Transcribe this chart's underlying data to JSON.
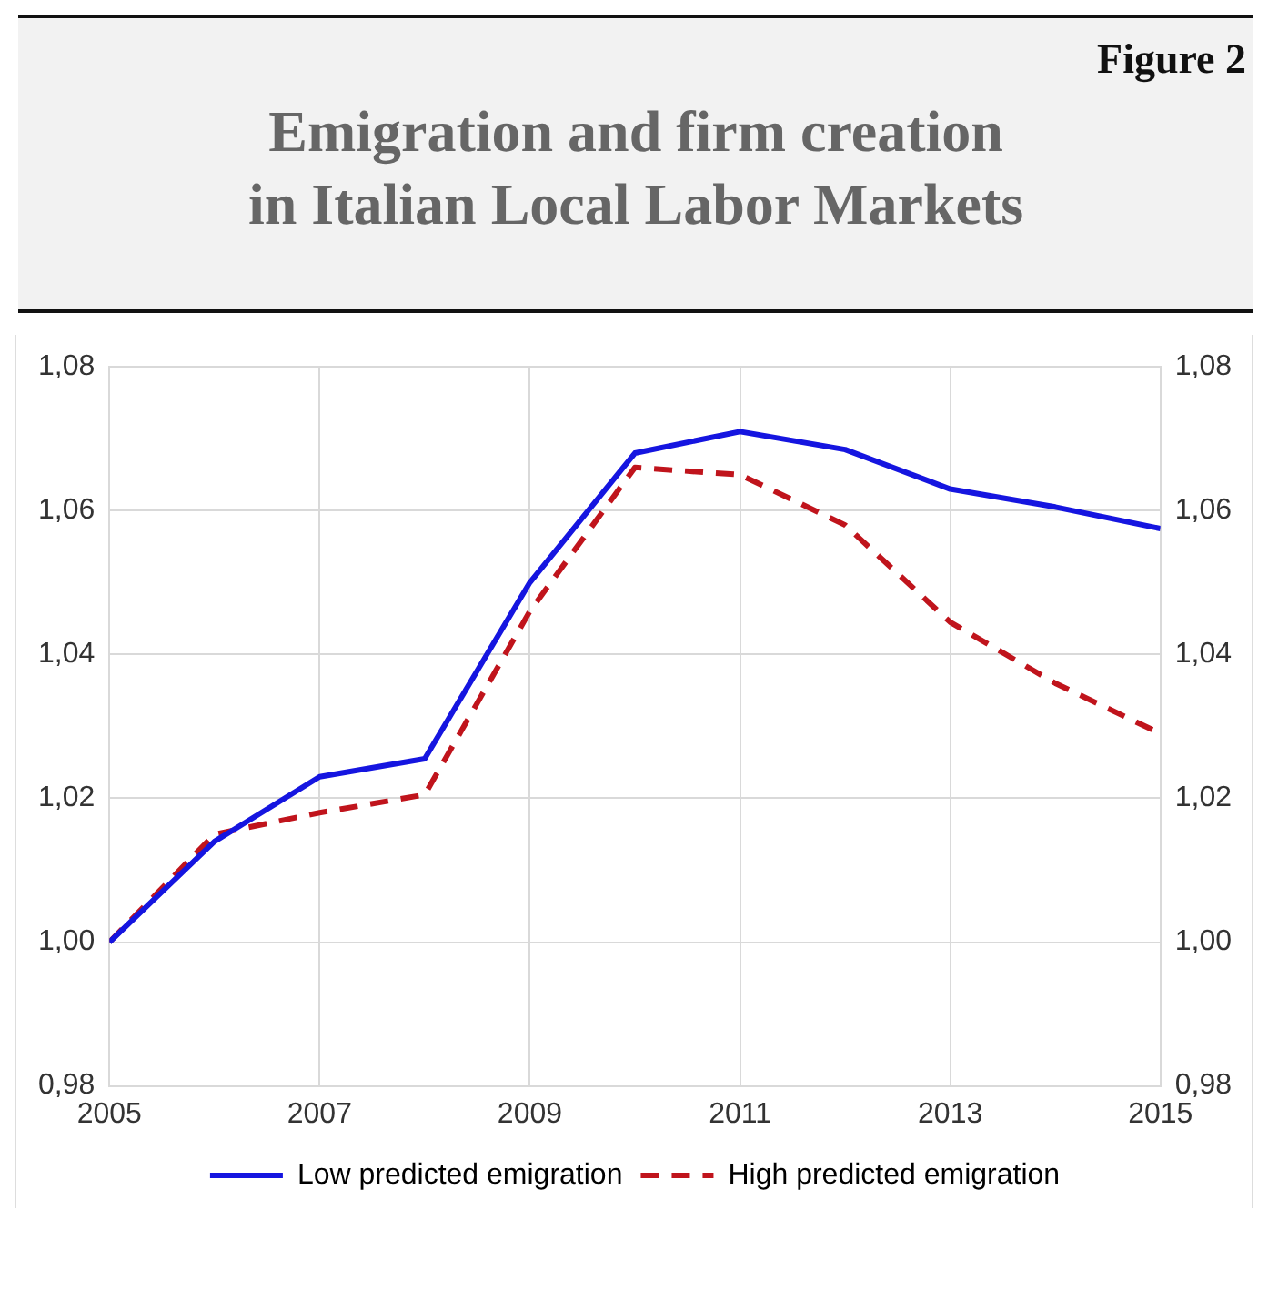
{
  "chart_data": {
    "type": "line",
    "title": "Emigration and firm creation\nin Italian Local Labor Markets",
    "annotations": [
      "Figure 2"
    ],
    "x": [
      2005,
      2006,
      2007,
      2008,
      2009,
      2010,
      2011,
      2012,
      2013,
      2014,
      2015
    ],
    "series": [
      {
        "name": "Low predicted emigration",
        "color": "#1515e0",
        "line_style": "solid",
        "values": [
          1.0,
          1.014,
          1.023,
          1.0255,
          1.05,
          1.068,
          1.071,
          1.0685,
          1.063,
          1.0605,
          1.0575
        ]
      },
      {
        "name": "High predicted emigration",
        "color": "#c0141c",
        "line_style": "dashed",
        "values": [
          1.0,
          1.015,
          1.018,
          1.0205,
          1.046,
          1.066,
          1.065,
          1.058,
          1.0445,
          1.036,
          1.029
        ]
      }
    ],
    "xlim": [
      2005,
      2015
    ],
    "xticks": [
      2005,
      2007,
      2009,
      2011,
      2013,
      2015
    ],
    "ylim": [
      0.98,
      1.08
    ],
    "yticks": [
      {
        "value": 0.98,
        "label": "0,98"
      },
      {
        "value": 1.0,
        "label": "1,00"
      },
      {
        "value": 1.02,
        "label": "1,02"
      },
      {
        "value": 1.04,
        "label": "1,04"
      },
      {
        "value": 1.06,
        "label": "1,06"
      },
      {
        "value": 1.08,
        "label": "1,08"
      }
    ],
    "y2lim": [
      0.98,
      1.08
    ],
    "y2ticks": [
      {
        "value": 0.98,
        "label": "0,98"
      },
      {
        "value": 1.0,
        "label": "1,00"
      },
      {
        "value": 1.02,
        "label": "1,02"
      },
      {
        "value": 1.04,
        "label": "1,04"
      },
      {
        "value": 1.06,
        "label": "1,06"
      },
      {
        "value": 1.08,
        "label": "1,08"
      }
    ],
    "grid": true,
    "legend": "bottom",
    "marker": "none"
  }
}
